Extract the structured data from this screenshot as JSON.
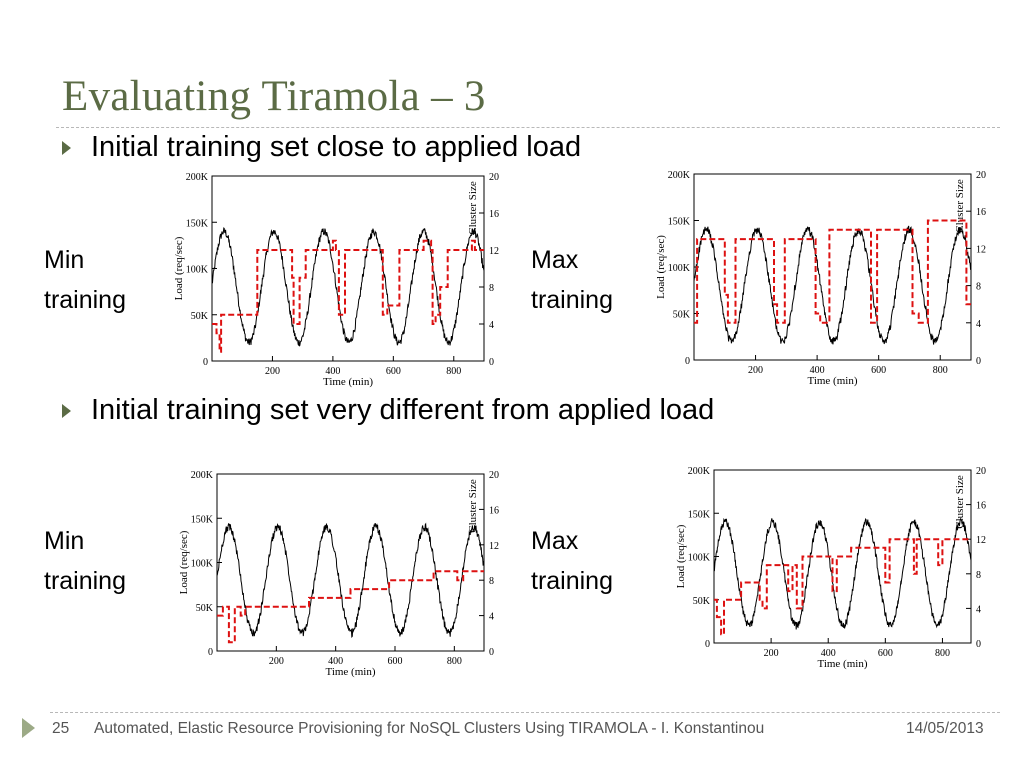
{
  "slide": {
    "title": "Evaluating Tiramola – 3",
    "bullet1": "Initial training set close to applied load",
    "bullet2": "Initial training set very different from applied load",
    "labels": {
      "min": [
        "Min",
        "training"
      ],
      "max": [
        "Max",
        "training"
      ]
    },
    "footer": {
      "page": "25",
      "text": "Automated, Elastic Resource Provisioning for NoSQL Clusters Using TIRAMOLA - I. Konstantinou",
      "date": "14/05/2013"
    },
    "colors": {
      "title": "#5b6b45",
      "bullet": "#5b6b45",
      "load": "#000000",
      "cluster": "#dd1111"
    }
  },
  "chart_data": [
    {
      "type": "line",
      "xlabel": "Time (min)",
      "ylabel": "Load (req/sec)",
      "y2label": "Cluster Size",
      "xlim": [
        0,
        900
      ],
      "ylim": [
        0,
        200000
      ],
      "y2lim": [
        0,
        20
      ],
      "xticks": [
        "200",
        "400",
        "600",
        "800"
      ],
      "yticks": [
        "0",
        "50K",
        "100K",
        "150K",
        "200K"
      ],
      "y2ticks": [
        "4",
        "8",
        "12",
        "16",
        "20"
      ],
      "series": [
        {
          "values": {
            "period": 165,
            "phase_peak": 40,
            "min": 20000,
            "max": 140000
          }
        },
        {
          "steps": [
            [
              0,
              4
            ],
            [
              15,
              3
            ],
            [
              25,
              1
            ],
            [
              30,
              5
            ],
            [
              140,
              5
            ],
            [
              150,
              12
            ],
            [
              260,
              12
            ],
            [
              265,
              9
            ],
            [
              270,
              4
            ],
            [
              290,
              9
            ],
            [
              310,
              12
            ],
            [
              395,
              12
            ],
            [
              400,
              13
            ],
            [
              410,
              12
            ],
            [
              420,
              5
            ],
            [
              440,
              12
            ],
            [
              560,
              12
            ],
            [
              565,
              5
            ],
            [
              580,
              6
            ],
            [
              620,
              12
            ],
            [
              695,
              12
            ],
            [
              700,
              13
            ],
            [
              725,
              12
            ],
            [
              730,
              4
            ],
            [
              740,
              5
            ],
            [
              755,
              8
            ],
            [
              780,
              12
            ],
            [
              855,
              12
            ],
            [
              860,
              13
            ],
            [
              870,
              12
            ],
            [
              900,
              12
            ]
          ]
        }
      ]
    },
    {
      "type": "line",
      "xlabel": "Time (min)",
      "ylabel": "Load (req/sec)",
      "y2label": "Cluster Size",
      "xlim": [
        0,
        900
      ],
      "ylim": [
        0,
        200000
      ],
      "y2lim": [
        0,
        20
      ],
      "xticks": [
        "200",
        "400",
        "600",
        "800"
      ],
      "yticks": [
        "0",
        "50K",
        "100K",
        "150K",
        "200K"
      ],
      "y2ticks": [
        "4",
        "8",
        "12",
        "16",
        "20"
      ],
      "series": [
        {
          "values": {
            "period": 165,
            "phase_peak": 40,
            "min": 20000,
            "max": 140000
          }
        },
        {
          "steps": [
            [
              0,
              4
            ],
            [
              10,
              13
            ],
            [
              90,
              13
            ],
            [
              100,
              7
            ],
            [
              110,
              4
            ],
            [
              135,
              13
            ],
            [
              250,
              13
            ],
            [
              260,
              6
            ],
            [
              270,
              4
            ],
            [
              295,
              13
            ],
            [
              385,
              13
            ],
            [
              395,
              5
            ],
            [
              410,
              4
            ],
            [
              440,
              14
            ],
            [
              565,
              14
            ],
            [
              575,
              4
            ],
            [
              595,
              14
            ],
            [
              700,
              14
            ],
            [
              710,
              5
            ],
            [
              730,
              4
            ],
            [
              760,
              15
            ],
            [
              880,
              15
            ],
            [
              885,
              6
            ],
            [
              900,
              6
            ]
          ]
        }
      ]
    },
    {
      "type": "line",
      "xlabel": "Time (min)",
      "ylabel": "Load (req/sec)",
      "y2label": "Cluster Size",
      "xlim": [
        0,
        900
      ],
      "ylim": [
        0,
        200000
      ],
      "y2lim": [
        0,
        20
      ],
      "xticks": [
        "200",
        "400",
        "600",
        "800"
      ],
      "yticks": [
        "0",
        "50K",
        "100K",
        "150K",
        "200K"
      ],
      "y2ticks": [
        "4",
        "8",
        "12",
        "16",
        "20"
      ],
      "series": [
        {
          "values": {
            "period": 165,
            "phase_peak": 40,
            "min": 20000,
            "max": 140000
          }
        },
        {
          "steps": [
            [
              0,
              4
            ],
            [
              20,
              5
            ],
            [
              40,
              1
            ],
            [
              60,
              5
            ],
            [
              80,
              4
            ],
            [
              95,
              5
            ],
            [
              300,
              5
            ],
            [
              310,
              6
            ],
            [
              440,
              6
            ],
            [
              450,
              7
            ],
            [
              570,
              7
            ],
            [
              580,
              8
            ],
            [
              720,
              8
            ],
            [
              730,
              9
            ],
            [
              800,
              9
            ],
            [
              810,
              8
            ],
            [
              830,
              9
            ],
            [
              900,
              9
            ]
          ]
        }
      ]
    },
    {
      "type": "line",
      "xlabel": "Time (min)",
      "ylabel": "Load (req/sec)",
      "y2label": "Cluster Size",
      "xlim": [
        0,
        900
      ],
      "ylim": [
        0,
        200000
      ],
      "y2lim": [
        0,
        20
      ],
      "xticks": [
        "200",
        "400",
        "600",
        "800"
      ],
      "yticks": [
        "0",
        "50K",
        "100K",
        "150K",
        "200K"
      ],
      "y2ticks": [
        "4",
        "8",
        "12",
        "16",
        "20"
      ],
      "series": [
        {
          "values": {
            "period": 165,
            "phase_peak": 40,
            "min": 20000,
            "max": 140000
          }
        },
        {
          "steps": [
            [
              0,
              5
            ],
            [
              10,
              3
            ],
            [
              25,
              1
            ],
            [
              35,
              5
            ],
            [
              80,
              5
            ],
            [
              95,
              7
            ],
            [
              150,
              7
            ],
            [
              160,
              5
            ],
            [
              170,
              4
            ],
            [
              185,
              9
            ],
            [
              255,
              9
            ],
            [
              260,
              6
            ],
            [
              275,
              9
            ],
            [
              290,
              4
            ],
            [
              310,
              10
            ],
            [
              400,
              10
            ],
            [
              415,
              6
            ],
            [
              430,
              10
            ],
            [
              470,
              10
            ],
            [
              480,
              11
            ],
            [
              590,
              11
            ],
            [
              600,
              7
            ],
            [
              615,
              12
            ],
            [
              690,
              12
            ],
            [
              700,
              8
            ],
            [
              710,
              12
            ],
            [
              775,
              12
            ],
            [
              785,
              9
            ],
            [
              800,
              12
            ],
            [
              900,
              12
            ]
          ]
        }
      ]
    }
  ]
}
